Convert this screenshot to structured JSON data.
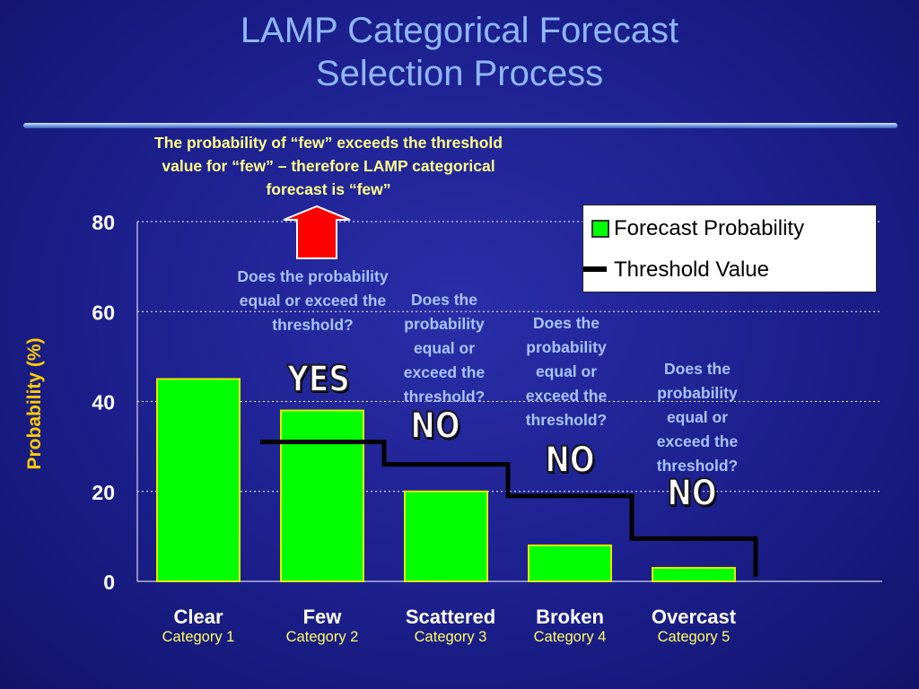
{
  "slide": {
    "title_line1": "LAMP Categorical Forecast",
    "title_line2": "Selection Process",
    "callout": "The probability of “few” exceeds the threshold value for “few” – therefore LAMP categorical forecast is “few”",
    "questions": [
      "Does the probability equal or exceed the threshold?",
      "Does the probability equal or exceed the threshold?",
      "Does the probability equal or exceed the threshold?",
      "Does the probability equal or exceed the threshold?"
    ],
    "answers": [
      "YES",
      "NO",
      "NO",
      "NO"
    ]
  },
  "colors": {
    "bar_fill": "#00ff00",
    "bar_stroke": "#e8e800",
    "threshold": "#000000",
    "arrow": "#ff0000",
    "axis_text": "#ffffff",
    "ylabel": "#ffcc00",
    "question_text": "#a8c4ff",
    "callout_text": "#ffff88"
  },
  "chart_data": {
    "type": "bar",
    "ylabel": "Probability (%)",
    "xlabel": "",
    "ylim": [
      0,
      80
    ],
    "yticks": [
      0,
      20,
      40,
      60,
      80
    ],
    "grid": true,
    "categories": [
      "Clear",
      "Few",
      "Scattered",
      "Broken",
      "Overcast"
    ],
    "category_sublabels": [
      "Category 1",
      "Category 2",
      "Category 3",
      "Category 4",
      "Category 5"
    ],
    "series": [
      {
        "name": "Forecast Probability",
        "values": [
          45,
          38,
          20,
          8,
          3
        ]
      },
      {
        "name": "Threshold Value",
        "values": [
          null,
          31,
          26,
          19,
          9.5
        ],
        "style": "step"
      }
    ],
    "legend": {
      "position": "top-right",
      "entries": [
        "Forecast Probability",
        "Threshold Value"
      ]
    }
  }
}
